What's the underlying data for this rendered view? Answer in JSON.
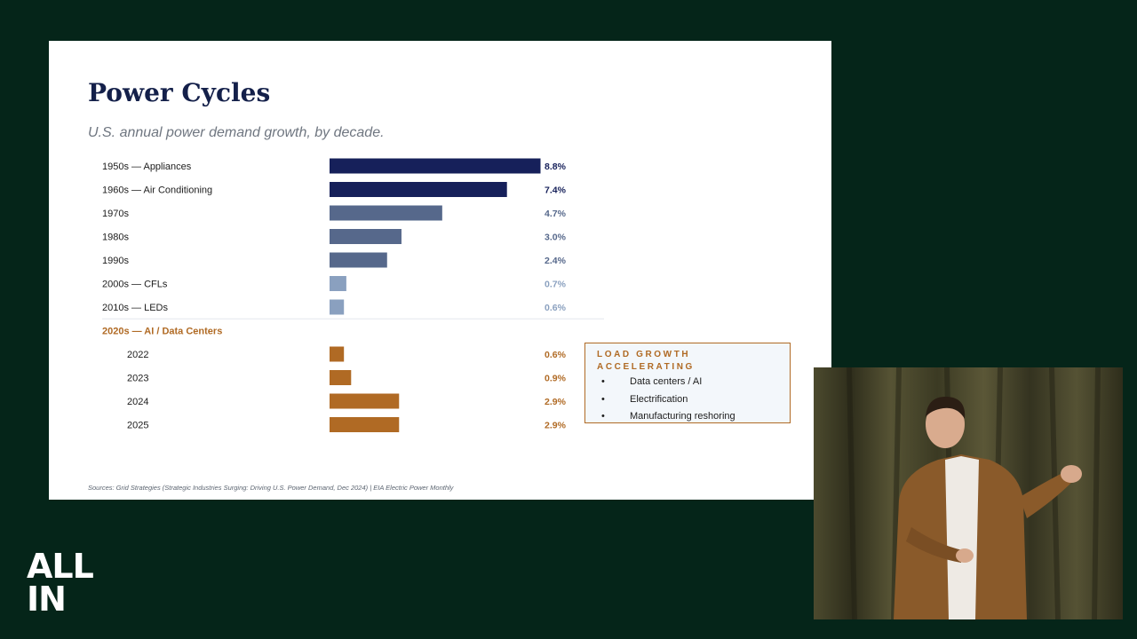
{
  "slide": {
    "title": "Power Cycles",
    "subtitle": "U.S. annual power demand growth, by decade.",
    "sources": "Sources:  Grid Strategies (Strategic Industries Surging:  Driving U.S. Power Demand, Dec 2024)  |  EIA Electric Power Monthly"
  },
  "chart_data": {
    "type": "bar",
    "orientation": "horizontal",
    "title": "Power Cycles",
    "subtitle": "U.S. annual power demand growth, by decade.",
    "xlim": [
      0,
      8.8
    ],
    "grid": false,
    "rows": [
      {
        "label": "1950s — Appliances",
        "value": 8.8,
        "value_label": "8.8%",
        "color": "#16205a"
      },
      {
        "label": "1960s — Air Conditioning",
        "value": 7.4,
        "value_label": "7.4%",
        "color": "#16205a"
      },
      {
        "label": "1970s",
        "value": 4.7,
        "value_label": "4.7%",
        "color": "#56688b"
      },
      {
        "label": "1980s",
        "value": 3.0,
        "value_label": "3.0%",
        "color": "#56688b"
      },
      {
        "label": "1990s",
        "value": 2.4,
        "value_label": "2.4%",
        "color": "#56688b"
      },
      {
        "label": "2000s — CFLs",
        "value": 0.7,
        "value_label": "0.7%",
        "color": "#8aa0bf"
      },
      {
        "label": "2010s — LEDs",
        "value": 0.6,
        "value_label": "0.6%",
        "color": "#8aa0bf"
      }
    ],
    "group_header": "2020s — AI / Data Centers",
    "group_rows": [
      {
        "label": "2022",
        "value": 0.6,
        "value_label": "0.6%",
        "color": "#b06a24"
      },
      {
        "label": "2023",
        "value": 0.9,
        "value_label": "0.9%",
        "color": "#b06a24"
      },
      {
        "label": "2024",
        "value": 2.9,
        "value_label": "2.9%",
        "color": "#b06a24"
      },
      {
        "label": "2025",
        "value": 2.9,
        "value_label": "2.9%",
        "color": "#b06a24"
      }
    ]
  },
  "callout": {
    "title": "LOAD GROWTH ACCELERATING",
    "items": [
      "Data centers / AI",
      "Electrification",
      "Manufacturing reshoring"
    ],
    "accent_color": "#b06a24"
  },
  "brand": {
    "logo_text": "ALL IN"
  }
}
